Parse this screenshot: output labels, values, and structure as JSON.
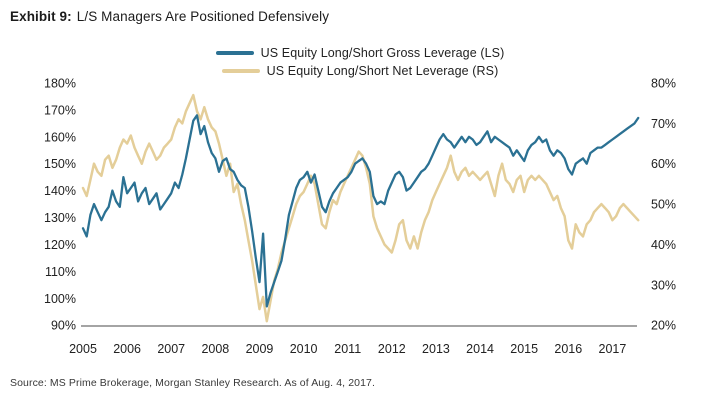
{
  "title": {
    "prefix": "Exhibit 9:",
    "text": "L/S Managers Are Positioned Defensively"
  },
  "source": "Source: MS Prime Brokerage, Morgan Stanley Research. As of Aug. 4, 2017.",
  "colors": {
    "gross_line": "#2B7193",
    "net_line": "#E4CE99",
    "axis_line": "#4a4a4a",
    "tick_text": "#222222"
  },
  "legend": [
    {
      "label": "US Equity Long/Short Gross Leverage (LS)",
      "color": "#2B7193"
    },
    {
      "label": "US Equity Long/Short Net Leverage (RS)",
      "color": "#E4CE99"
    }
  ],
  "chart_data": {
    "type": "line",
    "grid": false,
    "x_ticks": [
      2005,
      2006,
      2007,
      2008,
      2009,
      2010,
      2011,
      2012,
      2013,
      2014,
      2015,
      2016,
      2017
    ],
    "left_axis": {
      "label_suffix": "%",
      "min": 90,
      "max": 180,
      "step": 10,
      "ticks": [
        "180%",
        "170%",
        "160%",
        "150%",
        "140%",
        "130%",
        "120%",
        "110%",
        "100%",
        "90%"
      ]
    },
    "right_axis": {
      "label_suffix": "%",
      "min": 20,
      "max": 80,
      "step": 10,
      "ticks": [
        "80%",
        "70%",
        "60%",
        "50%",
        "40%",
        "30%",
        "20%"
      ]
    },
    "x_range": [
      2005.0,
      2017.583
    ],
    "series": [
      {
        "name": "US Equity Long/Short Gross Leverage (LS)",
        "axis": "left",
        "color": "#2B7193",
        "x_start": 2005.0,
        "x_step": 0.08333,
        "values": [
          126,
          123,
          131,
          135,
          132,
          129,
          132,
          134,
          140,
          136,
          134,
          145,
          139,
          141,
          143,
          136,
          139,
          141,
          135,
          137,
          139,
          133,
          135,
          137,
          139,
          143,
          141,
          146,
          152,
          159,
          166,
          168,
          161,
          164,
          158,
          154,
          152,
          147,
          151,
          152,
          148,
          147,
          144,
          142,
          141,
          134,
          125,
          115,
          106,
          124,
          97,
          102,
          106,
          110,
          114,
          122,
          131,
          136,
          141,
          144,
          145,
          147,
          143,
          146,
          140,
          134,
          132,
          136,
          139,
          141,
          143,
          144,
          145,
          147,
          150,
          151,
          152,
          150,
          147,
          138,
          135,
          136,
          135,
          140,
          143,
          146,
          147,
          145,
          140,
          141,
          143,
          145,
          147,
          148,
          150,
          153,
          156,
          159,
          161,
          159,
          158,
          156,
          158,
          160,
          158,
          160,
          159,
          157,
          158,
          160,
          162,
          158,
          160,
          159,
          158,
          157,
          156,
          153,
          155,
          153,
          151,
          155,
          157,
          158,
          160,
          158,
          159,
          155,
          153,
          155,
          154,
          152,
          148,
          146,
          150,
          151,
          152,
          150,
          154,
          155,
          156,
          156,
          157,
          158,
          159,
          160,
          161,
          162,
          163,
          164,
          165,
          167
        ]
      },
      {
        "name": "US Equity Long/Short Net Leverage (RS)",
        "axis": "right",
        "color": "#E4CE99",
        "x_start": 2005.0,
        "x_step": 0.08333,
        "values": [
          54,
          52,
          56,
          60,
          58,
          57,
          61,
          62,
          59,
          61,
          64,
          66,
          65,
          67,
          64,
          62,
          60,
          63,
          65,
          63,
          61,
          62,
          64,
          65,
          66,
          69,
          71,
          70,
          73,
          75,
          77,
          73,
          71,
          74,
          71,
          69,
          68,
          65,
          61,
          57,
          60,
          53,
          55,
          50,
          46,
          41,
          36,
          30,
          24,
          27,
          21,
          26,
          31,
          34,
          38,
          41,
          44,
          47,
          50,
          52,
          53,
          55,
          57,
          55,
          50,
          45,
          44,
          48,
          51,
          50,
          53,
          55,
          57,
          59,
          61,
          63,
          62,
          59,
          55,
          47,
          44,
          42,
          40,
          39,
          38,
          41,
          45,
          46,
          41,
          39,
          42,
          39,
          43,
          46,
          48,
          51,
          53,
          55,
          57,
          59,
          62,
          58,
          56,
          58,
          59,
          57,
          58,
          57,
          56,
          57,
          58,
          55,
          52,
          57,
          60,
          56,
          55,
          53,
          56,
          57,
          53,
          56,
          57,
          56,
          57,
          56,
          55,
          53,
          51,
          52,
          49,
          47,
          41,
          39,
          45,
          43,
          42,
          45,
          46,
          48,
          49,
          50,
          49,
          48,
          46,
          47,
          49,
          50,
          49,
          48,
          47,
          46
        ]
      }
    ]
  }
}
